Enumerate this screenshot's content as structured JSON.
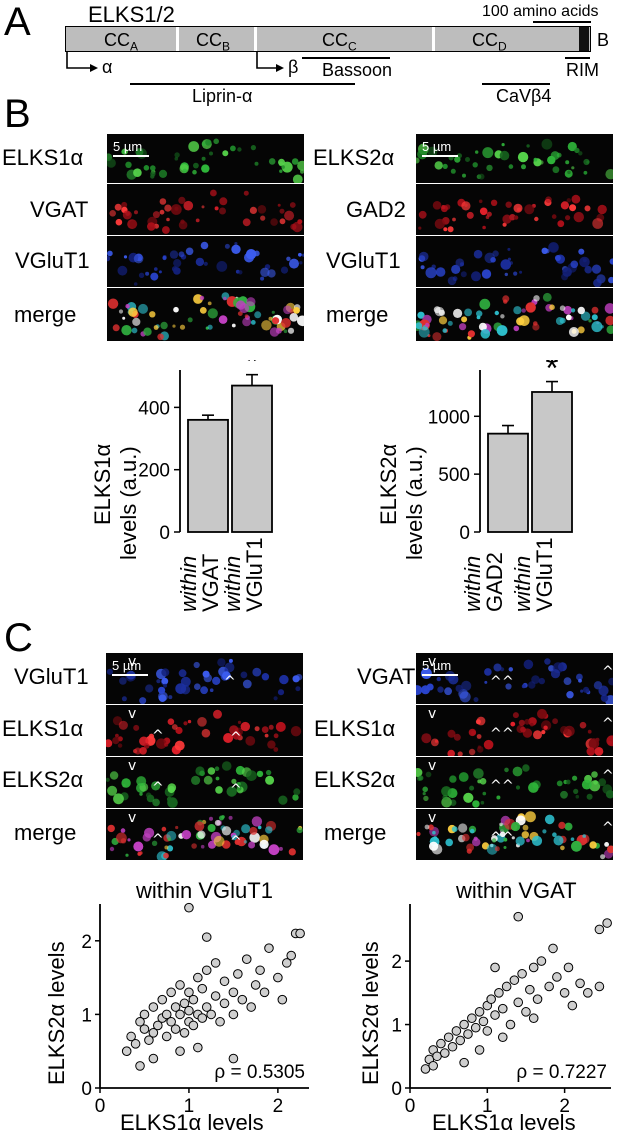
{
  "panel_a": {
    "letter": "A",
    "title": "ELKS1/2",
    "scale_label": "100 amino acids",
    "domains": [
      {
        "sub_main": "CC",
        "sub": "A"
      },
      {
        "sub_main": "CC",
        "sub": "B"
      },
      {
        "sub_main": "CC",
        "sub": "C"
      },
      {
        "sub_main": "CC",
        "sub": "D"
      }
    ],
    "end_label": "B",
    "isoform_alpha": "α",
    "isoform_beta": "β",
    "binding": {
      "bassoon": "Bassoon",
      "rim": "RIM",
      "liprin": "Liprin-α",
      "cavb4": "CaVβ4"
    }
  },
  "panel_b": {
    "letter": "B",
    "left_rows": [
      "ELKS1α",
      "VGAT",
      "VGluT1",
      "merge"
    ],
    "right_rows": [
      "ELKS2α",
      "GAD2",
      "VGluT1",
      "merge"
    ],
    "scale": "5 µm",
    "significance": "*",
    "left_ylabel_1": "ELKS1α",
    "left_ylabel_2": "levels (a.u.)",
    "right_ylabel_1": "ELKS2α",
    "right_ylabel_2": "levels (a.u.)",
    "left_xcat": [
      [
        "within",
        "VGAT"
      ],
      [
        "within",
        "VGluT1"
      ]
    ],
    "right_xcat": [
      [
        "within",
        "GAD2"
      ],
      [
        "within",
        "VGluT1"
      ]
    ]
  },
  "panel_c": {
    "letter": "C",
    "left_rows": [
      "VGluT1",
      "ELKS1α",
      "ELKS2α",
      "merge"
    ],
    "right_rows": [
      "VGAT",
      "ELKS1α",
      "ELKS2α",
      "merge"
    ],
    "scale": "5 µm",
    "left_title": "within VGluT1",
    "right_title": "within VGAT",
    "xlabel": "ELKS1α levels",
    "ylabel": "ELKS2α levels",
    "left_rho": "ρ = 0.5305",
    "right_rho": "ρ = 0.7227"
  },
  "chart_data": [
    {
      "type": "bar",
      "categories": [
        "within VGAT",
        "within VGluT1"
      ],
      "values": [
        360,
        470
      ],
      "errors": [
        15,
        35
      ],
      "ylabel": "ELKS1α levels (a.u.)",
      "ylim": [
        0,
        520
      ],
      "yticks": [
        0,
        200,
        400
      ]
    },
    {
      "type": "bar",
      "categories": [
        "within GAD2",
        "within VGluT1"
      ],
      "values": [
        850,
        1210
      ],
      "errors": [
        70,
        90
      ],
      "ylabel": "ELKS2α levels (a.u.)",
      "ylim": [
        0,
        1400
      ],
      "yticks": [
        0,
        500,
        1000
      ]
    },
    {
      "type": "scatter",
      "title": "within VGluT1",
      "xlabel": "ELKS1α levels",
      "ylabel": "ELKS2α levels",
      "xlim": [
        0,
        2.35
      ],
      "ylim": [
        0,
        2.5
      ],
      "xticks": [
        0,
        1,
        2
      ],
      "yticks": [
        0,
        1,
        2
      ],
      "annotation": "ρ = 0.5305",
      "points": [
        [
          0.3,
          0.5
        ],
        [
          0.35,
          0.7
        ],
        [
          0.4,
          0.6
        ],
        [
          0.45,
          0.9
        ],
        [
          0.5,
          0.8
        ],
        [
          0.5,
          1.0
        ],
        [
          0.55,
          0.65
        ],
        [
          0.6,
          0.75
        ],
        [
          0.6,
          1.1
        ],
        [
          0.65,
          0.85
        ],
        [
          0.7,
          0.95
        ],
        [
          0.7,
          1.2
        ],
        [
          0.75,
          0.7
        ],
        [
          0.75,
          1.0
        ],
        [
          0.8,
          0.9
        ],
        [
          0.8,
          1.3
        ],
        [
          0.85,
          0.8
        ],
        [
          0.85,
          1.1
        ],
        [
          0.9,
          1.0
        ],
        [
          0.9,
          1.4
        ],
        [
          0.95,
          0.75
        ],
        [
          0.95,
          1.15
        ],
        [
          1.0,
          0.9
        ],
        [
          1.0,
          1.05
        ],
        [
          1.0,
          1.3
        ],
        [
          1.05,
          0.85
        ],
        [
          1.05,
          1.2
        ],
        [
          1.1,
          1.0
        ],
        [
          1.1,
          1.5
        ],
        [
          1.15,
          0.95
        ],
        [
          1.15,
          1.35
        ],
        [
          1.2,
          1.1
        ],
        [
          1.2,
          1.6
        ],
        [
          1.25,
          1.0
        ],
        [
          1.3,
          1.25
        ],
        [
          1.3,
          1.7
        ],
        [
          1.35,
          0.9
        ],
        [
          1.4,
          1.15
        ],
        [
          1.4,
          1.45
        ],
        [
          1.5,
          1.3
        ],
        [
          1.5,
          1.0
        ],
        [
          1.55,
          1.55
        ],
        [
          1.6,
          1.2
        ],
        [
          1.65,
          1.75
        ],
        [
          1.7,
          1.1
        ],
        [
          1.75,
          1.4
        ],
        [
          1.8,
          1.6
        ],
        [
          1.85,
          1.3
        ],
        [
          1.9,
          1.9
        ],
        [
          2.0,
          1.5
        ],
        [
          2.05,
          1.2
        ],
        [
          2.1,
          1.7
        ],
        [
          2.2,
          2.1
        ],
        [
          2.25,
          2.1
        ],
        [
          1.0,
          2.45
        ],
        [
          1.2,
          2.05
        ],
        [
          1.1,
          0.55
        ],
        [
          0.9,
          0.5
        ],
        [
          0.6,
          0.4
        ],
        [
          0.45,
          0.3
        ],
        [
          1.5,
          0.4
        ],
        [
          2.15,
          1.8
        ]
      ]
    },
    {
      "type": "scatter",
      "title": "within VGAT",
      "xlabel": "ELKS1α levels",
      "ylabel": "ELKS2α levels",
      "xlim": [
        0,
        2.6
      ],
      "ylim": [
        0,
        2.9
      ],
      "xticks": [
        0,
        1,
        2
      ],
      "yticks": [
        0,
        1,
        2
      ],
      "annotation": "ρ = 0.7227",
      "points": [
        [
          0.2,
          0.3
        ],
        [
          0.25,
          0.45
        ],
        [
          0.3,
          0.35
        ],
        [
          0.3,
          0.6
        ],
        [
          0.35,
          0.5
        ],
        [
          0.4,
          0.7
        ],
        [
          0.45,
          0.55
        ],
        [
          0.5,
          0.8
        ],
        [
          0.55,
          0.65
        ],
        [
          0.6,
          0.9
        ],
        [
          0.65,
          0.75
        ],
        [
          0.7,
          1.0
        ],
        [
          0.75,
          0.85
        ],
        [
          0.8,
          1.1
        ],
        [
          0.85,
          0.95
        ],
        [
          0.9,
          1.2
        ],
        [
          0.95,
          1.05
        ],
        [
          1.0,
          1.3
        ],
        [
          1.0,
          0.9
        ],
        [
          1.05,
          1.4
        ],
        [
          1.1,
          1.15
        ],
        [
          1.15,
          1.5
        ],
        [
          1.2,
          1.25
        ],
        [
          1.25,
          1.6
        ],
        [
          1.3,
          1.0
        ],
        [
          1.35,
          1.7
        ],
        [
          1.4,
          1.35
        ],
        [
          1.45,
          1.8
        ],
        [
          1.5,
          1.2
        ],
        [
          1.55,
          1.55
        ],
        [
          1.6,
          1.9
        ],
        [
          1.65,
          1.4
        ],
        [
          1.7,
          2.0
        ],
        [
          1.8,
          1.6
        ],
        [
          1.85,
          2.2
        ],
        [
          1.9,
          1.75
        ],
        [
          2.0,
          1.5
        ],
        [
          2.05,
          1.9
        ],
        [
          2.1,
          1.3
        ],
        [
          2.2,
          1.65
        ],
        [
          2.3,
          1.5
        ],
        [
          2.45,
          1.6
        ],
        [
          2.55,
          2.6
        ],
        [
          2.45,
          2.5
        ],
        [
          1.4,
          2.7
        ],
        [
          1.1,
          1.9
        ],
        [
          0.7,
          0.4
        ],
        [
          1.2,
          0.8
        ],
        [
          0.9,
          0.6
        ],
        [
          1.6,
          1.1
        ]
      ]
    }
  ]
}
